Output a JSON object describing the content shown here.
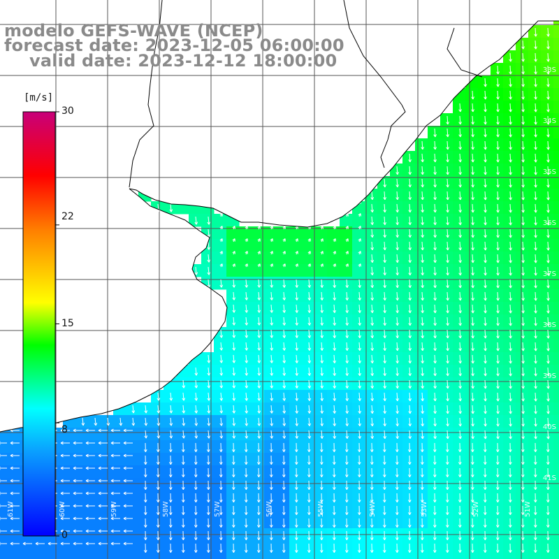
{
  "header": {
    "line1": "modelo GEFS-WAVE (NCEP)",
    "line2": "forecast date: 2023-12-05 06:00:00",
    "line3": "valid date: 2023-12-12 18:00:00"
  },
  "colorbar": {
    "unit": "[m/s]",
    "ticks": [
      "30",
      "22",
      "15",
      "8",
      "0"
    ],
    "tick_values": [
      30,
      22,
      15,
      8,
      0
    ],
    "range": [
      0,
      30
    ],
    "colors": [
      "#0000ff",
      "#0aa0ff",
      "#00ffff",
      "#00ff00",
      "#ffff00",
      "#ff8000",
      "#ff0000",
      "#c8007a"
    ]
  },
  "axes": {
    "lat_labels": [
      "33S",
      "34S",
      "35S",
      "36S",
      "37S",
      "38S",
      "39S",
      "40S",
      "41S"
    ],
    "lon_labels": [
      "61W",
      "60W",
      "59W",
      "58W",
      "57W",
      "56W",
      "55W",
      "54W",
      "53W",
      "52W",
      "51W"
    ],
    "grid": true
  },
  "colors": {
    "title_gray": "#8a8a8a",
    "land": "#ffffff",
    "coast": "#000000",
    "grid": "#555555",
    "arrows": "#ffffff"
  }
}
